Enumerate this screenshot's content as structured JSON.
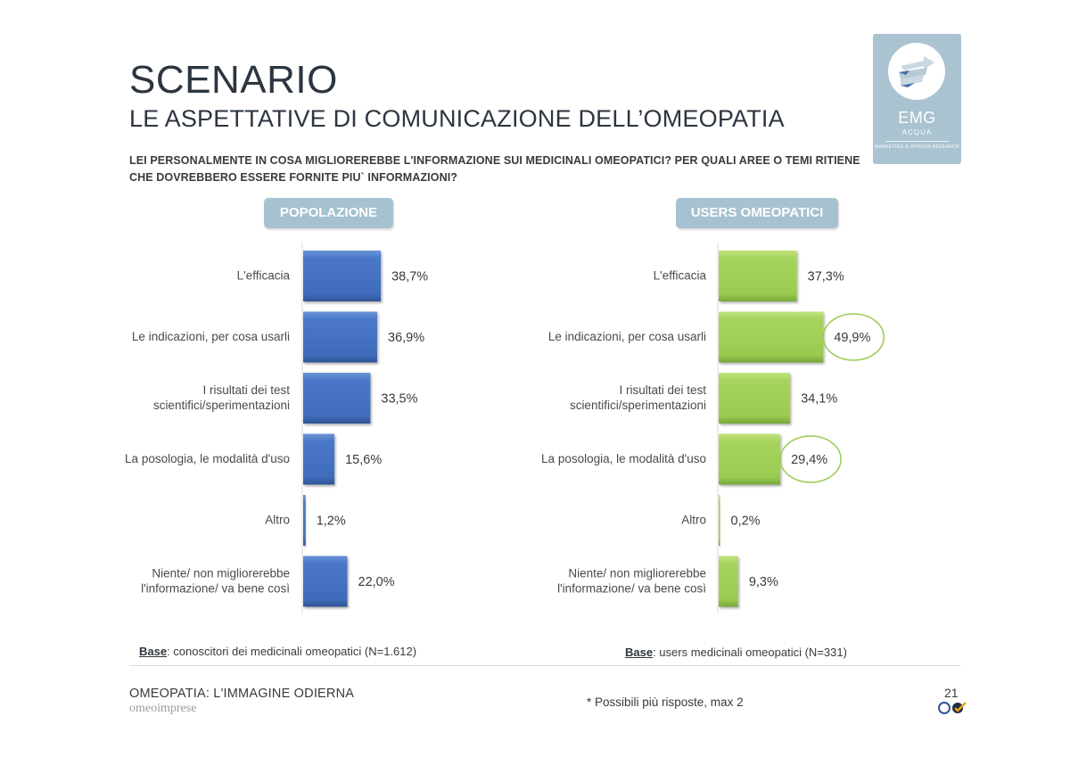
{
  "header": {
    "title": "SCENARIO",
    "subtitle": "LE ASPETTATIVE DI COMUNICAZIONE DELL’OMEOPATIA",
    "question": "LEI PERSONALMENTE IN COSA MIGLIOREREBBE L'INFORMAZIONE SUI MEDICINALI OMEOPATICI? PER QUALI AREE O TEMI RITIENE CHE DOVREBBERO ESSERE FORNITE PIU` INFORMAZIONI?"
  },
  "logo": {
    "name": "EMG",
    "sub": "ACQUA",
    "tagline": "MARKETING & OPINION RESEARCH",
    "bg_color": "#a9c3d0"
  },
  "chart_data": [
    {
      "type": "bar",
      "orientation": "horizontal",
      "title": "POPOLAZIONE",
      "categories": [
        "L'efficacia",
        "Le indicazioni, per cosa usarli",
        "I risultati dei test scientifici/sperimentazioni",
        "La posologia, le modalità d'uso",
        "Altro",
        "Niente/ non migliorerebbe l'informazione/ va bene così"
      ],
      "category_lines": [
        [
          "L'efficacia"
        ],
        [
          "Le indicazioni, per cosa usarli"
        ],
        [
          "I risultati dei test",
          "scientifici/sperimentazioni"
        ],
        [
          "La posologia, le modalità d'uso"
        ],
        [
          "Altro"
        ],
        [
          "Niente/ non migliorerebbe",
          "l'informazione/ va bene così"
        ]
      ],
      "values": [
        38.7,
        36.9,
        33.5,
        15.6,
        1.2,
        22.0
      ],
      "value_labels": [
        "38,7%",
        "36,9%",
        "33,5%",
        "15,6%",
        "1,2%",
        "22,0%"
      ],
      "highlighted": [],
      "color": "#4472c4",
      "xlim": [
        0,
        100
      ],
      "grid": false,
      "base_label": "Base",
      "base_text": ": conoscitori dei medicinali omeopatici (N=1.612)"
    },
    {
      "type": "bar",
      "orientation": "horizontal",
      "title": "USERS OMEOPATICI",
      "categories": [
        "L'efficacia",
        "Le indicazioni, per cosa usarli",
        "I risultati dei test scientifici/sperimentazioni",
        "La posologia, le modalità d'uso",
        "Altro",
        "Niente/ non migliorerebbe l'informazione/ va bene così"
      ],
      "category_lines": [
        [
          "L'efficacia"
        ],
        [
          "Le indicazioni, per cosa usarli"
        ],
        [
          "I risultati dei test",
          "scientifici/sperimentazioni"
        ],
        [
          "La posologia, le modalità d'uso"
        ],
        [
          "Altro"
        ],
        [
          "Niente/ non migliorerebbe",
          "l'informazione/ va bene così"
        ]
      ],
      "values": [
        37.3,
        49.9,
        34.1,
        29.4,
        0.2,
        9.3
      ],
      "value_labels": [
        "37,3%",
        "49,9%",
        "34,1%",
        "29,4%",
        "0,2%",
        "9,3%"
      ],
      "highlighted": [
        1,
        3
      ],
      "color": "#9acd4e",
      "xlim": [
        0,
        100
      ],
      "grid": false,
      "base_label": "Base",
      "base_text": ": users medicinali omeopatici (N=331)"
    }
  ],
  "footer": {
    "title": "OMEOPATIA: L'IMMAGINE ODIERNA",
    "brand": "omeoimprese",
    "footnote": "* Possibili più risposte, max 2",
    "page_number": "21"
  }
}
